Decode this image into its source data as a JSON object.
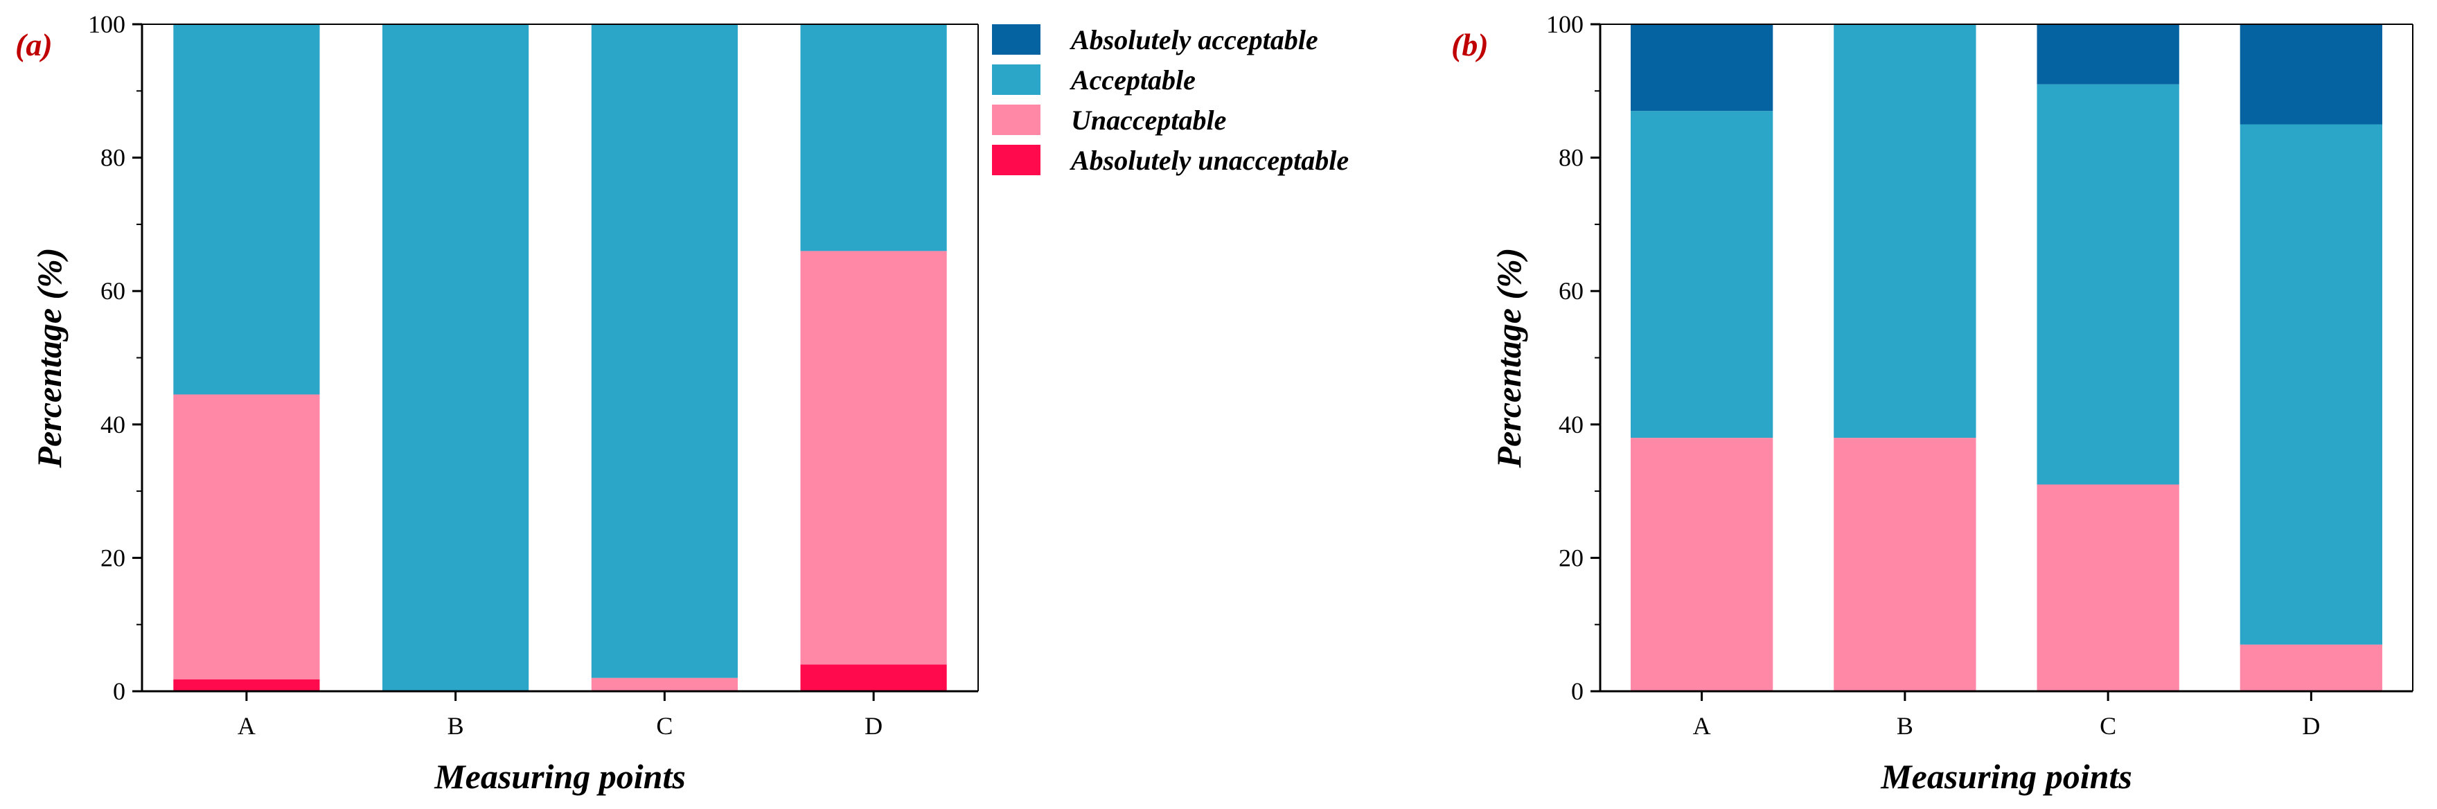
{
  "colors": {
    "absolutely_acceptable": "#0563a1",
    "acceptable": "#2ba5c8",
    "unacceptable": "#ff88a7",
    "absolutely_unacceptable": "#ff0a4d"
  },
  "legend": {
    "placement": "between-panels-top",
    "entries": [
      "Absolutely acceptable",
      "Acceptable",
      "Unacceptable",
      "Absolutely unacceptable"
    ]
  },
  "chart_data": [
    {
      "type": "bar",
      "stacked": true,
      "panel_label": "(a)",
      "xlabel": "Measuring points",
      "ylabel": "Percentage (%)",
      "ylim": [
        0,
        100
      ],
      "yticks": [
        0,
        20,
        40,
        60,
        80,
        100
      ],
      "categories": [
        "A",
        "B",
        "C",
        "D"
      ],
      "series": [
        {
          "name": "Absolutely unacceptable",
          "key": "absolutely_unacceptable",
          "values": [
            1.8,
            0,
            0,
            4
          ]
        },
        {
          "name": "Unacceptable",
          "key": "unacceptable",
          "values": [
            42.7,
            0,
            2,
            62
          ]
        },
        {
          "name": "Acceptable",
          "key": "acceptable",
          "values": [
            55.5,
            100,
            98,
            34
          ]
        },
        {
          "name": "Absolutely acceptable",
          "key": "absolutely_acceptable",
          "values": [
            0,
            0,
            0,
            0
          ]
        }
      ]
    },
    {
      "type": "bar",
      "stacked": true,
      "panel_label": "(b)",
      "xlabel": "Measuring points",
      "ylabel": "Percentage (%)",
      "ylim": [
        0,
        100
      ],
      "yticks": [
        0,
        20,
        40,
        60,
        80,
        100
      ],
      "categories": [
        "A",
        "B",
        "C",
        "D"
      ],
      "series": [
        {
          "name": "Absolutely unacceptable",
          "key": "absolutely_unacceptable",
          "values": [
            0,
            0,
            0,
            0
          ]
        },
        {
          "name": "Unacceptable",
          "key": "unacceptable",
          "values": [
            38,
            38,
            31,
            7
          ]
        },
        {
          "name": "Acceptable",
          "key": "acceptable",
          "values": [
            49,
            62,
            60,
            78
          ]
        },
        {
          "name": "Absolutely acceptable",
          "key": "absolutely_acceptable",
          "values": [
            13,
            0,
            9,
            15
          ]
        }
      ]
    }
  ]
}
